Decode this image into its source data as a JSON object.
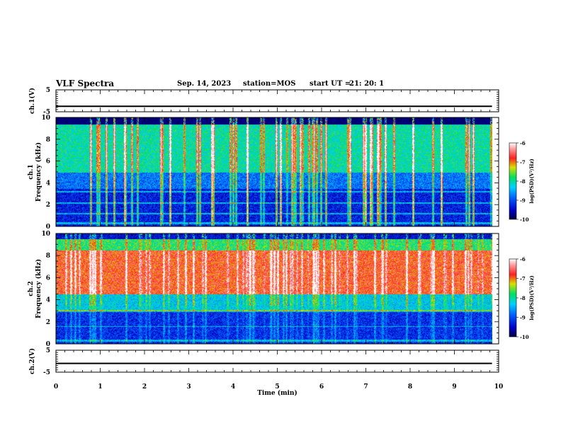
{
  "header": {
    "title": "VLF Spectra",
    "date": "Sep. 14, 2023",
    "station": "station=MOS",
    "start_label": "start  UT =",
    "start_time": "21: 20: 1"
  },
  "chart_data": [
    {
      "type": "line",
      "name": "waveform-ch1",
      "ylabel": "ch.1(V)",
      "ylim": [
        -5,
        5
      ],
      "yticks": [
        "5",
        "-5"
      ],
      "x": [
        0,
        9.85
      ],
      "y": [
        -2.5,
        -2.5
      ],
      "xlim": [
        0,
        10
      ]
    },
    {
      "type": "heatmap",
      "name": "spectrogram-ch1",
      "ylabel": "ch.1\nFrequency (kHz)",
      "ylim": [
        0,
        10
      ],
      "yticks": [
        "0",
        "2",
        "4",
        "6",
        "8",
        "10"
      ],
      "xlim": [
        0,
        10
      ],
      "x_extent": [
        0,
        9.85
      ],
      "colorbar": {
        "label": "log(PSD)(V²/Hz)",
        "range": [
          -10,
          -6
        ],
        "ticks": [
          "-6",
          "-7",
          "-8",
          "-9",
          "-10"
        ]
      },
      "description_bands": [
        {
          "f_low": 0,
          "f_high": 3.5,
          "log_psd": -9.3
        },
        {
          "f_low": 3.5,
          "f_high": 5.0,
          "log_psd": -8.8
        },
        {
          "f_low": 5.0,
          "f_high": 9.4,
          "log_psd": -8.0
        },
        {
          "f_low": 9.4,
          "f_high": 10,
          "log_psd": -10
        }
      ]
    },
    {
      "type": "heatmap",
      "name": "spectrogram-ch2",
      "ylabel": "ch.2\nFrequency (kHz)",
      "ylim": [
        0,
        10
      ],
      "yticks": [
        "0",
        "2",
        "4",
        "6",
        "8",
        "10"
      ],
      "xlim": [
        0,
        10
      ],
      "x_extent": [
        0,
        9.85
      ],
      "colorbar": {
        "label": "log(PSD)(V²/Hz)",
        "range": [
          -10,
          -6
        ],
        "ticks": [
          "-6",
          "-7",
          "-8",
          "-9",
          "-10"
        ]
      },
      "description_bands": [
        {
          "f_low": 0,
          "f_high": 3.0,
          "log_psd": -9.2
        },
        {
          "f_low": 3.0,
          "f_high": 4.5,
          "log_psd": -8.3
        },
        {
          "f_low": 4.5,
          "f_high": 8.5,
          "log_psd": -6.8
        },
        {
          "f_low": 8.5,
          "f_high": 9.5,
          "log_psd": -7.8
        },
        {
          "f_low": 9.5,
          "f_high": 10,
          "log_psd": -9.5
        }
      ]
    },
    {
      "type": "line",
      "name": "waveform-ch2",
      "ylabel": "ch.2(V)",
      "ylim": [
        -5,
        5
      ],
      "yticks": [
        "5",
        "-5"
      ],
      "x": [
        0,
        9.85
      ],
      "y": [
        -1.0,
        -1.0
      ],
      "xlim": [
        0,
        10
      ]
    }
  ],
  "xaxis": {
    "label": "Time  (min)",
    "ticks": [
      "0",
      "1",
      "2",
      "3",
      "4",
      "5",
      "6",
      "7",
      "8",
      "9",
      "10"
    ]
  }
}
